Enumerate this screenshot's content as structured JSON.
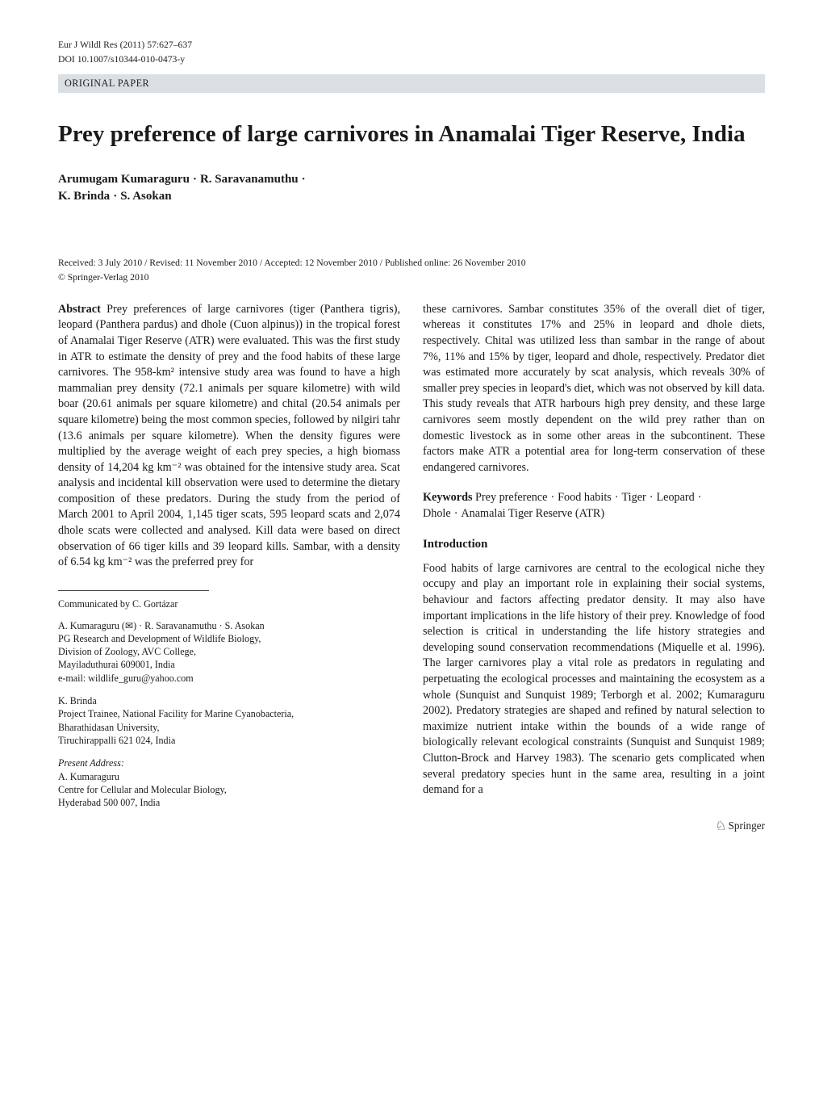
{
  "header": {
    "journal_ref": "Eur J Wildl Res (2011) 57:627–637",
    "doi": "DOI 10.1007/s10344-010-0473-y",
    "category": "ORIGINAL PAPER"
  },
  "title": "Prey preference of large carnivores in Anamalai Tiger Reserve, India",
  "authors": {
    "a1": "Arumugam Kumaraguru",
    "a2": "R. Saravanamuthu",
    "a3": "K. Brinda",
    "a4": "S. Asokan"
  },
  "dates": "Received: 3 July 2010 / Revised: 11 November 2010 / Accepted: 12 November 2010 / Published online: 26 November 2010",
  "copyright": "© Springer-Verlag 2010",
  "abstract_label": "Abstract",
  "abstract_left": "Prey preferences of large carnivores (tiger (Panthera tigris), leopard (Panthera pardus) and dhole (Cuon alpinus)) in the tropical forest of Anamalai Tiger Reserve (ATR) were evaluated. This was the first study in ATR to estimate the density of prey and the food habits of these large carnivores. The 958-km² intensive study area was found to have a high mammalian prey density (72.1 animals per square kilometre) with wild boar (20.61 animals per square kilometre) and chital (20.54 animals per square kilometre) being the most common species, followed by nilgiri tahr (13.6 animals per square kilometre). When the density figures were multiplied by the average weight of each prey species, a high biomass density of 14,204 kg km⁻² was obtained for the intensive study area. Scat analysis and incidental kill observation were used to determine the dietary composition of these predators. During the study from the period of March 2001 to April 2004, 1,145 tiger scats, 595 leopard scats and 2,074 dhole scats were collected and analysed. Kill data were based on direct observation of 66 tiger kills and 39 leopard kills. Sambar, with a density of 6.54 kg km⁻² was the preferred prey for",
  "abstract_right": "these carnivores. Sambar constitutes 35% of the overall diet of tiger, whereas it constitutes 17% and 25% in leopard and dhole diets, respectively. Chital was utilized less than sambar in the range of about 7%, 11% and 15% by tiger, leopard and dhole, respectively. Predator diet was estimated more accurately by scat analysis, which reveals 30% of smaller prey species in leopard's diet, which was not observed by kill data. This study reveals that ATR harbours high prey density, and these large carnivores seem mostly dependent on the wild prey rather than on domestic livestock as in some other areas in the subcontinent. These factors make ATR a potential area for long-term conservation of these endangered carnivores.",
  "keywords_label": "Keywords",
  "keywords": {
    "k1": "Prey preference",
    "k2": "Food habits",
    "k3": "Tiger",
    "k4": "Leopard",
    "k5": "Dhole",
    "k6": "Anamalai Tiger Reserve (ATR)"
  },
  "intro_heading": "Introduction",
  "intro_text": "Food habits of large carnivores are central to the ecological niche they occupy and play an important role in explaining their social systems, behaviour and factors affecting predator density. It may also have important implications in the life history of their prey. Knowledge of food selection is critical in understanding the life history strategies and developing sound conservation recommendations (Miquelle et al. 1996). The larger carnivores play a vital role as predators in regulating and perpetuating the ecological processes and maintaining the ecosystem as a whole (Sunquist and Sunquist 1989; Terborgh et al. 2002; Kumaraguru 2002). Predatory strategies are shaped and refined by natural selection to maximize nutrient intake within the bounds of a wide range of biologically relevant ecological constraints (Sunquist and Sunquist 1989; Clutton-Brock and Harvey 1983). The scenario gets complicated when several predatory species hunt in the same area, resulting in a joint demand for a",
  "communicated_by": "Communicated by C. Gortázar",
  "affil1": {
    "line1": "A. Kumaraguru (✉) · R. Saravanamuthu · S. Asokan",
    "line2": "PG Research and Development of Wildlife Biology,",
    "line3": "Division of Zoology, AVC College,",
    "line4": "Mayiladuthurai 609001, India",
    "line5": "e-mail: wildlife_guru@yahoo.com"
  },
  "affil2": {
    "line1": "K. Brinda",
    "line2": "Project Trainee, National Facility for Marine Cyanobacteria,",
    "line3": "Bharathidasan University,",
    "line4": "Tiruchirappalli 621 024, India"
  },
  "present": {
    "label": "Present Address:",
    "line1": "A. Kumaraguru",
    "line2": "Centre for Cellular and Molecular Biology,",
    "line3": "Hyderabad 500 007, India"
  },
  "publisher_mark": "Springer"
}
